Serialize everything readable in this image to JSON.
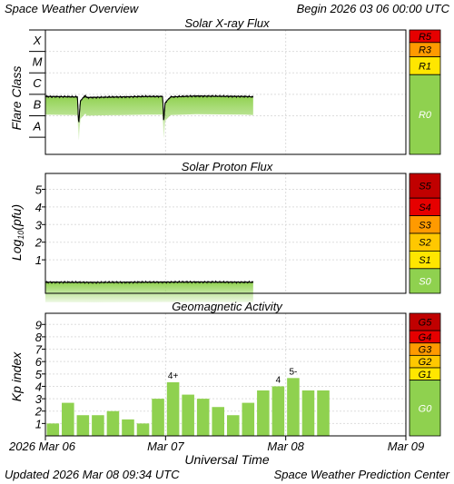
{
  "header": {
    "title": "Space Weather Overview",
    "begin": "Begin 2026 03 06 00:00 UTC"
  },
  "footer": {
    "updated_label": "Updated",
    "updated": "2026 Mar 08 09:34 UTC",
    "center": "Space Weather Prediction Center"
  },
  "colors": {
    "bar": "#8fd14f",
    "scale_green": "#8fd14f",
    "scale_yellow": "#ffe600",
    "scale_orange": "#ff9a00",
    "scale_red": "#e60000",
    "scale_darkred": "#c00000",
    "frame": "#000000",
    "grid": "#dddddd"
  },
  "chart_data": [
    {
      "type": "area",
      "title": "Solar X-ray Flux",
      "ylabel": "Flare Class",
      "ytick_labels": [
        "A",
        "B",
        "C",
        "M",
        "X"
      ],
      "ylim": [
        -8.8,
        -3
      ],
      "xlim": [
        0,
        72
      ],
      "grid": true,
      "x": [
        0,
        6.4,
        6.5,
        6.6,
        6.7,
        6.8,
        7.0,
        8.0,
        8.2,
        20,
        23.4,
        23.5,
        23.6,
        23.7,
        23.9,
        25,
        30,
        40,
        41.5
      ],
      "y": [
        -6.1,
        -6.12,
        -6.6,
        -7.2,
        -7.3,
        -6.9,
        -6.3,
        -6.05,
        -6.15,
        -6.1,
        -6.1,
        -6.5,
        -7.2,
        -7.1,
        -6.4,
        -6.12,
        -6.08,
        -6.1,
        -6.12
      ],
      "scale_labels": [
        "R5",
        "R3",
        "R1",
        "R0"
      ]
    },
    {
      "type": "area",
      "title": "Solar Proton Flux",
      "ylabel": "Log10(pfu)",
      "ylabel_main": "Log",
      "ylabel_sub": "10",
      "ylabel_tail": "(pfu)",
      "ytick_labels": [
        "1",
        "2",
        "3",
        "4",
        "5"
      ],
      "ylim": [
        -0.9,
        5.9
      ],
      "xlim": [
        0,
        72
      ],
      "grid": true,
      "x": [
        0,
        10,
        20,
        30,
        41.5
      ],
      "y": [
        -0.27,
        -0.28,
        -0.27,
        -0.26,
        -0.27
      ],
      "scale_labels": [
        "S5",
        "S4",
        "S3",
        "S2",
        "S1",
        "S0"
      ]
    },
    {
      "type": "bar",
      "title": "Geomagnetic Activity",
      "ylabel": "Kp index",
      "ytick_labels": [
        "1",
        "2",
        "3",
        "4",
        "5",
        "6",
        "7",
        "8",
        "9"
      ],
      "ylim": [
        0,
        9.9
      ],
      "xlim": [
        0,
        72
      ],
      "grid": true,
      "values": [
        1.0,
        2.67,
        1.67,
        1.67,
        2.0,
        1.33,
        1.0,
        3.0,
        4.33,
        3.33,
        3.0,
        2.33,
        1.67,
        2.67,
        3.67,
        4.0,
        4.67,
        3.67,
        3.67
      ],
      "bar_labels": [
        {
          "index": 8,
          "text": "4+"
        },
        {
          "index": 15,
          "text": "4"
        },
        {
          "index": 16,
          "text": "5-"
        }
      ],
      "scale_labels": [
        "G5",
        "G4",
        "G3",
        "G2",
        "G1",
        "G0"
      ]
    }
  ],
  "xaxis": {
    "ticks": [
      {
        "value": 0,
        "label": "2026 Mar 06"
      },
      {
        "value": 24,
        "label": "Mar 07"
      },
      {
        "value": 48,
        "label": "Mar 08"
      },
      {
        "value": 72,
        "label": "Mar 09"
      }
    ],
    "title": "Universal Time"
  }
}
